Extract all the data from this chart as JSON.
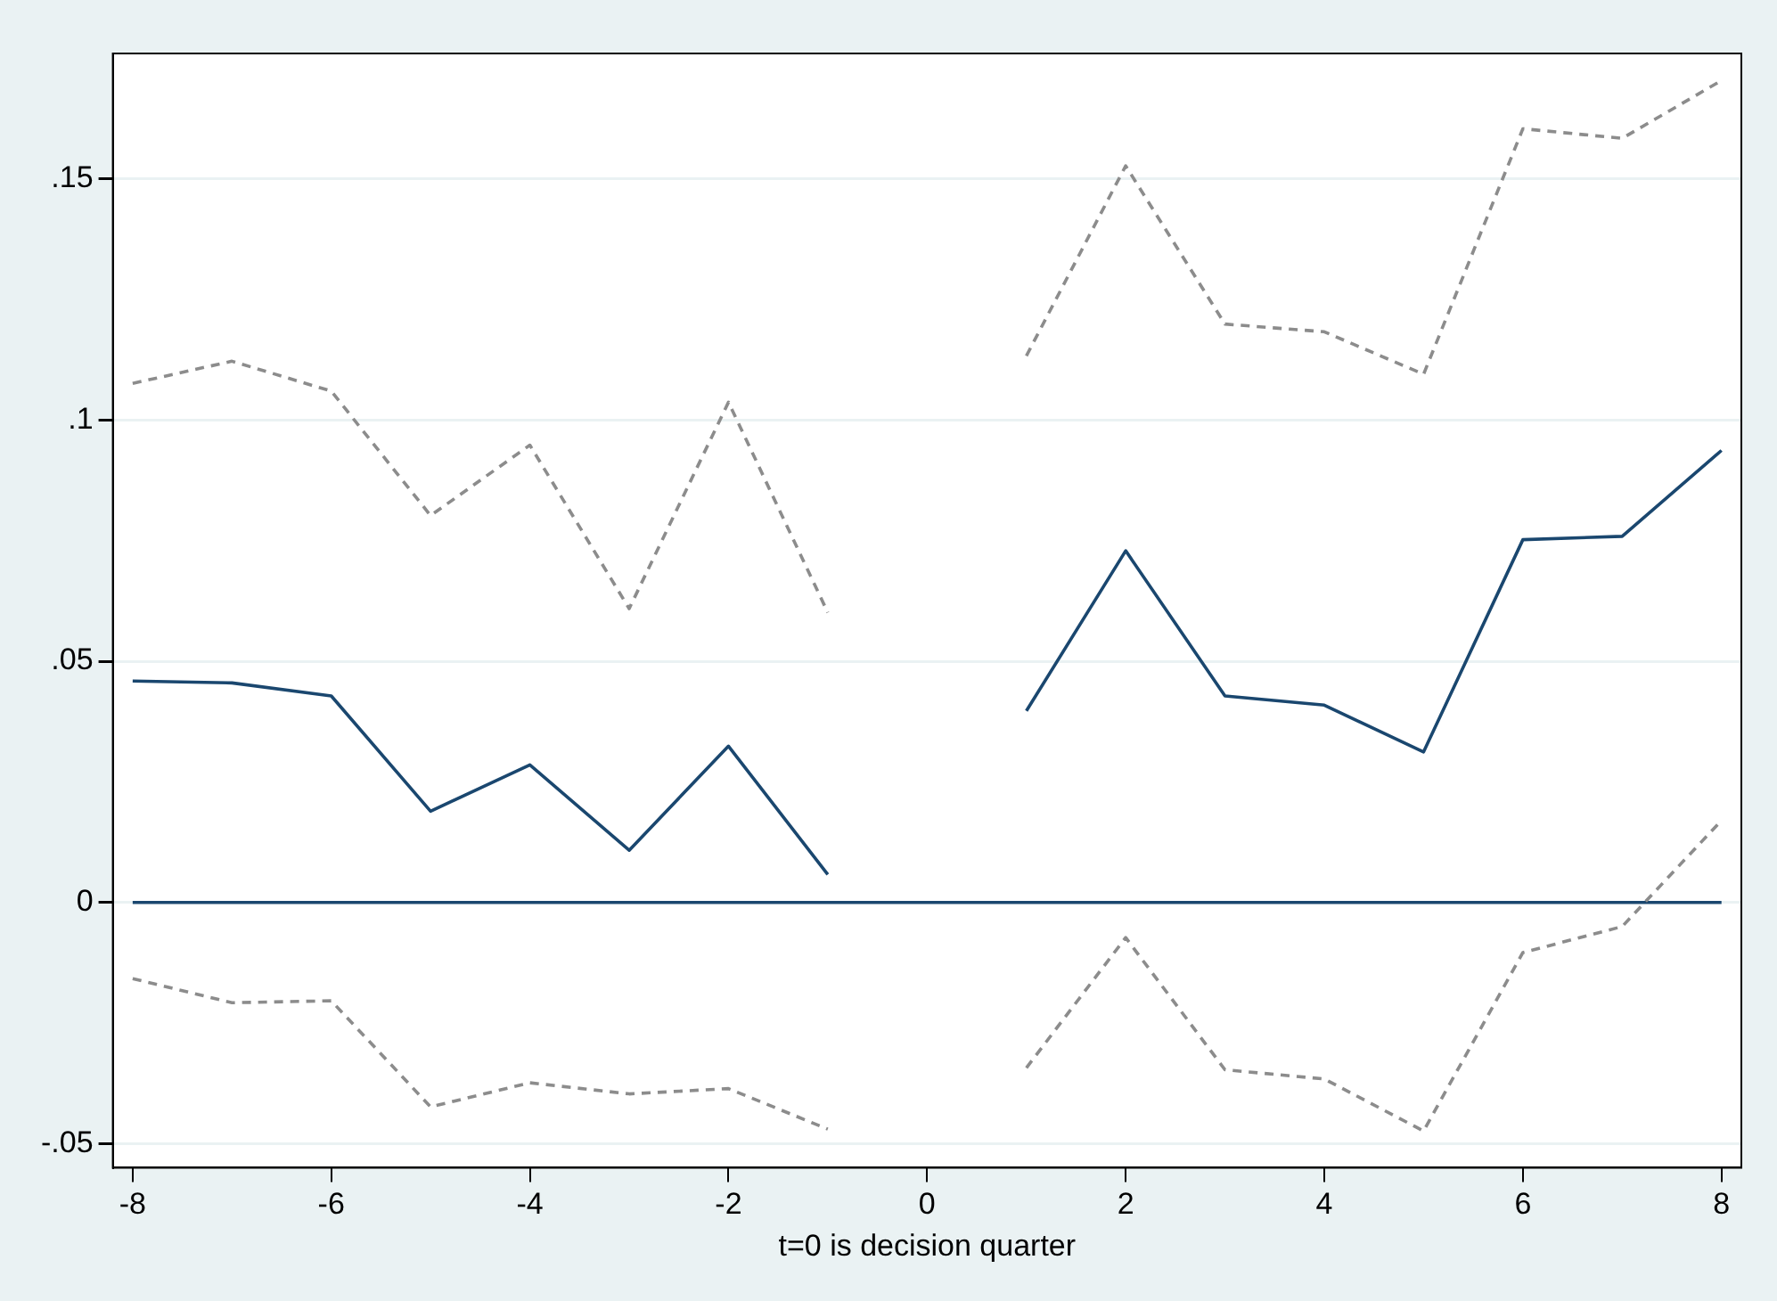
{
  "chart_data": {
    "type": "line",
    "xlabel": "t=0 is decision quarter",
    "x": [
      -8,
      -7,
      -6,
      -5,
      -4,
      -3,
      -2,
      -1,
      0,
      1,
      2,
      3,
      4,
      5,
      6,
      7,
      8
    ],
    "series": [
      {
        "color": "#1a476f",
        "line_style": "solid",
        "values": [
          0.0459,
          0.0455,
          0.0428,
          0.0189,
          0.0285,
          0.0108,
          0.0324,
          0.0058,
          null,
          0.0397,
          0.0729,
          0.0428,
          0.0409,
          0.0312,
          0.0752,
          0.0759,
          0.0937
        ]
      },
      {
        "color": "#8c8c8c",
        "line_style": "dashed",
        "values": [
          0.1076,
          0.1122,
          0.106,
          0.0802,
          0.0948,
          0.0609,
          0.1037,
          0.0601,
          null,
          0.1133,
          0.1527,
          0.1199,
          0.1183,
          0.1095,
          0.1604,
          0.1584,
          0.1704
        ]
      },
      {
        "color": "#8c8c8c",
        "line_style": "dashed",
        "values": [
          -0.0158,
          -0.0208,
          -0.0204,
          -0.0424,
          -0.0374,
          -0.0397,
          -0.0386,
          -0.047,
          null,
          -0.0343,
          -0.0073,
          -0.0347,
          -0.0366,
          -0.0474,
          -0.0104,
          -0.005,
          0.017
        ]
      },
      {
        "color": "#1a476f",
        "line_style": "solid",
        "x": [
          -8,
          8
        ],
        "values": [
          0,
          0
        ]
      }
    ],
    "xlim": [
      -8.2,
      8.2
    ],
    "xticks": [
      -8,
      -6,
      -4,
      -2,
      0,
      2,
      4,
      6,
      8
    ],
    "ylim": [
      -0.055,
      0.176
    ],
    "yticks": [
      {
        "value": -0.05,
        "label": "-.05"
      },
      0,
      {
        "value": 0.05,
        "label": ".05"
      },
      {
        "value": 0.1,
        "label": ".1"
      },
      {
        "value": 0.15,
        "label": ".15"
      }
    ],
    "grid": "y",
    "legend": false,
    "marker": "none"
  }
}
